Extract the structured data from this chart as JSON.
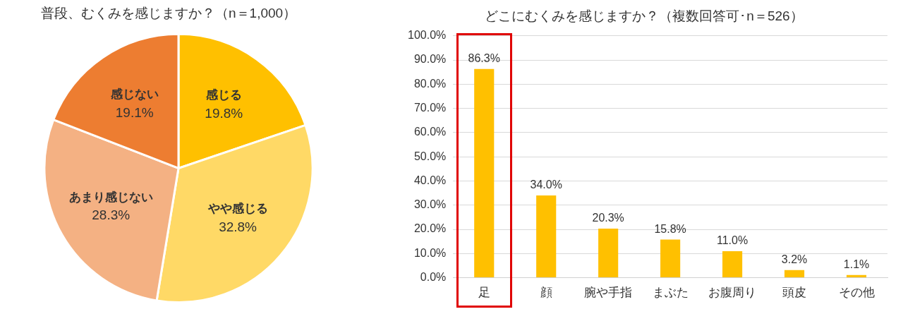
{
  "chart_data": [
    {
      "type": "pie",
      "title": "普段、むくみを感じますか？（n＝1,000）",
      "categories": [
        "感じる",
        "やや感じる",
        "あまり感じない",
        "感じない"
      ],
      "values": [
        19.8,
        32.8,
        28.3,
        19.1
      ],
      "colors": [
        "#ffc000",
        "#ffd966",
        "#f4b183",
        "#ed7d31"
      ],
      "value_labels": [
        "19.8%",
        "32.8%",
        "28.3%",
        "19.1%"
      ]
    },
    {
      "type": "bar",
      "title": "どこにむくみを感じますか？（複数回答可･n＝526）",
      "categories": [
        "足",
        "顔",
        "腕や手指",
        "まぶた",
        "お腹周り",
        "頭皮",
        "その他"
      ],
      "values": [
        86.3,
        34.0,
        20.3,
        15.8,
        11.0,
        3.2,
        1.1
      ],
      "color": "#ffc000",
      "ylim": [
        0,
        100
      ],
      "yticks": [
        {
          "value": 0,
          "label": "0.0%"
        },
        {
          "value": 10,
          "label": "10.0%"
        },
        {
          "value": 20,
          "label": "20.0%"
        },
        {
          "value": 30,
          "label": "30.0%"
        },
        {
          "value": 40,
          "label": "40.0%"
        },
        {
          "value": 50,
          "label": "50.0%"
        },
        {
          "value": 60,
          "label": "60.0%"
        },
        {
          "value": 70,
          "label": "70.0%"
        },
        {
          "value": 80,
          "label": "80.0%"
        },
        {
          "value": 90,
          "label": "90.0%"
        },
        {
          "value": 100,
          "label": "100.0%"
        }
      ],
      "grid": "y",
      "value_labels": [
        "86.3%",
        "34.0%",
        "20.3%",
        "15.8%",
        "11.0%",
        "3.2%",
        "1.1%"
      ]
    }
  ]
}
